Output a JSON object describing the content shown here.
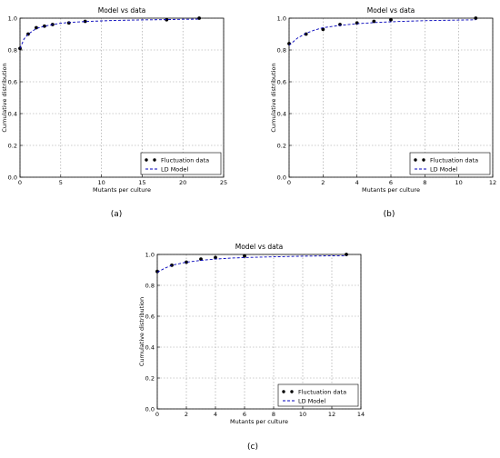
{
  "chart_data": [
    {
      "type": "scatter",
      "panel_label": "(a)",
      "title": "Model vs data",
      "xlabel": "Mutants per culture",
      "ylabel": "Cumulative distribution",
      "xlim": [
        0,
        25
      ],
      "ylim": [
        0,
        1
      ],
      "xticks": [
        "0",
        "5",
        "10",
        "15",
        "20",
        "25"
      ],
      "yticks": [
        "0.0",
        "0.2",
        "0.4",
        "0.6",
        "0.8",
        "1.0"
      ],
      "grid": true,
      "legend_position": "lower-right",
      "series": [
        {
          "name": "Fluctuation data",
          "kind": "points",
          "x": [
            0,
            1,
            2,
            3,
            4,
            6,
            8,
            18,
            22
          ],
          "y": [
            0.81,
            0.9,
            0.94,
            0.95,
            0.96,
            0.97,
            0.98,
            0.99,
            1.0
          ]
        },
        {
          "name": "LD Model",
          "kind": "dashed-line",
          "x": [
            0,
            0.5,
            1,
            2,
            3,
            4,
            5,
            6,
            8,
            10,
            12,
            15,
            18,
            20,
            22
          ],
          "y": [
            0.81,
            0.87,
            0.9,
            0.935,
            0.95,
            0.96,
            0.968,
            0.973,
            0.979,
            0.983,
            0.986,
            0.989,
            0.991,
            0.993,
            0.994
          ]
        }
      ]
    },
    {
      "type": "scatter",
      "panel_label": "(b)",
      "title": "Model vs data",
      "xlabel": "Mutants per culture",
      "ylabel": "Cumulative distribution",
      "xlim": [
        0,
        12
      ],
      "ylim": [
        0,
        1
      ],
      "xticks": [
        "0",
        "2",
        "4",
        "6",
        "8",
        "10",
        "12"
      ],
      "yticks": [
        "0.0",
        "0.2",
        "0.4",
        "0.6",
        "0.8",
        "1.0"
      ],
      "grid": true,
      "legend_position": "lower-right",
      "series": [
        {
          "name": "Fluctuation data",
          "kind": "points",
          "x": [
            0,
            1,
            2,
            3,
            4,
            5,
            6,
            11
          ],
          "y": [
            0.84,
            0.9,
            0.93,
            0.96,
            0.97,
            0.98,
            0.99,
            1.0
          ]
        },
        {
          "name": "LD Model",
          "kind": "dashed-line",
          "x": [
            0,
            0.5,
            1,
            1.5,
            2,
            3,
            4,
            5,
            6,
            7,
            8,
            9,
            10,
            11
          ],
          "y": [
            0.83,
            0.875,
            0.905,
            0.925,
            0.94,
            0.955,
            0.965,
            0.972,
            0.977,
            0.981,
            0.984,
            0.986,
            0.988,
            0.99
          ]
        }
      ]
    },
    {
      "type": "scatter",
      "panel_label": "(c)",
      "title": "Model vs data",
      "xlabel": "Mutants per culture",
      "ylabel": "Cumulative distribution",
      "xlim": [
        0,
        14
      ],
      "ylim": [
        0,
        1
      ],
      "xticks": [
        "0",
        "2",
        "4",
        "6",
        "8",
        "10",
        "12",
        "14"
      ],
      "yticks": [
        "0.0",
        "0.2",
        "0.4",
        "0.6",
        "0.8",
        "1.0"
      ],
      "grid": true,
      "legend_position": "lower-right",
      "series": [
        {
          "name": "Fluctuation data",
          "kind": "points",
          "x": [
            0,
            1,
            2,
            3,
            4,
            6,
            13
          ],
          "y": [
            0.89,
            0.93,
            0.95,
            0.97,
            0.98,
            0.99,
            1.0
          ]
        },
        {
          "name": "LD Model",
          "kind": "dashed-line",
          "x": [
            0,
            0.5,
            1,
            2,
            3,
            4,
            5,
            6,
            8,
            10,
            12,
            13
          ],
          "y": [
            0.885,
            0.91,
            0.93,
            0.95,
            0.962,
            0.97,
            0.976,
            0.98,
            0.985,
            0.989,
            0.991,
            0.992
          ]
        }
      ]
    }
  ],
  "colors": {
    "points": "#000000",
    "model_line": "#0000bb",
    "grid": "#9a9a9a",
    "axes": "#000000"
  }
}
